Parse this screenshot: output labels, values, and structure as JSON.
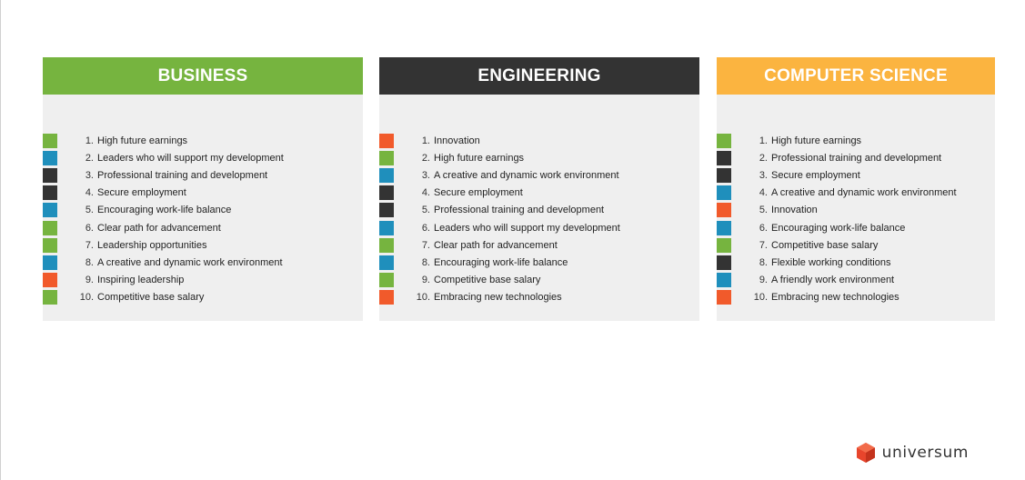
{
  "colors": {
    "green": "#76b43f",
    "blue": "#1f8fbc",
    "dark": "#333333",
    "red": "#f15a2b",
    "orange": "#fbb440"
  },
  "panels": [
    {
      "title": "BUSINESS",
      "header_color": "#76b43f",
      "items": [
        {
          "num": "1.",
          "label": "High future earnings",
          "color": "#76b43f"
        },
        {
          "num": "2.",
          "label": "Leaders who will support my development",
          "color": "#1f8fbc"
        },
        {
          "num": "3.",
          "label": "Professional training and development",
          "color": "#333333"
        },
        {
          "num": "4.",
          "label": "Secure employment",
          "color": "#333333"
        },
        {
          "num": "5.",
          "label": "Encouraging work-life balance",
          "color": "#1f8fbc"
        },
        {
          "num": "6.",
          "label": "Clear path for advancement",
          "color": "#76b43f"
        },
        {
          "num": "7.",
          "label": "Leadership opportunities",
          "color": "#76b43f"
        },
        {
          "num": "8.",
          "label": "A creative and dynamic work environment",
          "color": "#1f8fbc"
        },
        {
          "num": "9.",
          "label": "Inspiring leadership",
          "color": "#f15a2b"
        },
        {
          "num": "10.",
          "label": "Competitive base salary",
          "color": "#76b43f"
        }
      ]
    },
    {
      "title": "ENGINEERING",
      "header_color": "#333333",
      "items": [
        {
          "num": "1.",
          "label": "Innovation",
          "color": "#f15a2b"
        },
        {
          "num": "2.",
          "label": "High future earnings",
          "color": "#76b43f"
        },
        {
          "num": "3.",
          "label": "A creative and dynamic work environment",
          "color": "#1f8fbc"
        },
        {
          "num": "4.",
          "label": "Secure employment",
          "color": "#333333"
        },
        {
          "num": "5.",
          "label": "Professional training and development",
          "color": "#333333"
        },
        {
          "num": "6.",
          "label": "Leaders who will support my development",
          "color": "#1f8fbc"
        },
        {
          "num": "7.",
          "label": "Clear path for advancement",
          "color": "#76b43f"
        },
        {
          "num": "8.",
          "label": "Encouraging work-life balance",
          "color": "#1f8fbc"
        },
        {
          "num": "9.",
          "label": "Competitive base salary",
          "color": "#76b43f"
        },
        {
          "num": "10.",
          "label": "Embracing new technologies",
          "color": "#f15a2b"
        }
      ]
    },
    {
      "title": "COMPUTER SCIENCE",
      "header_color": "#fbb440",
      "items": [
        {
          "num": "1.",
          "label": "High future earnings",
          "color": "#76b43f"
        },
        {
          "num": "2.",
          "label": "Professional training and development",
          "color": "#333333"
        },
        {
          "num": "3.",
          "label": "Secure employment",
          "color": "#333333"
        },
        {
          "num": "4.",
          "label": "A creative and dynamic work environment",
          "color": "#1f8fbc"
        },
        {
          "num": "5.",
          "label": "Innovation",
          "color": "#f15a2b"
        },
        {
          "num": "6.",
          "label": "Encouraging work-life balance",
          "color": "#1f8fbc"
        },
        {
          "num": "7.",
          "label": "Competitive base salary",
          "color": "#76b43f"
        },
        {
          "num": "8.",
          "label": "Flexible working conditions",
          "color": "#333333"
        },
        {
          "num": "9.",
          "label": "A friendly work environment",
          "color": "#1f8fbc"
        },
        {
          "num": "10.",
          "label": "Embracing new technologies",
          "color": "#f15a2b"
        }
      ]
    }
  ],
  "brand": {
    "name": "universum",
    "logo_icon": "universum-logo-icon",
    "logo_color": "#e8452c"
  }
}
